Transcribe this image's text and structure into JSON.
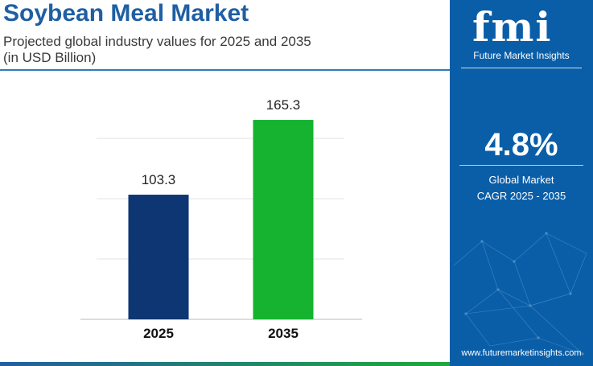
{
  "header": {
    "title": "Soybean Meal Market",
    "subtitle_line1": "Projected global industry values for 2025 and 2035",
    "subtitle_line2": "(in USD Billion)"
  },
  "sidebar": {
    "logo_text": "fmi",
    "logo_subtitle": "Future Market Insights",
    "cagr_value": "4.8%",
    "cagr_label_line1": "Global Market",
    "cagr_label_line2": "CAGR 2025 - 2035",
    "website": "www.futuremarketinsights.com"
  },
  "colors": {
    "title": "#1f5fa3",
    "panel": "#0a5ea8",
    "bar_2025": "#0d3672",
    "bar_2035": "#15b32f"
  },
  "chart_data": {
    "type": "bar",
    "title": "",
    "categories": [
      "2025",
      "2035"
    ],
    "values": [
      103.3,
      165.3
    ],
    "data_labels": [
      "103.3",
      "165.3"
    ],
    "bar_colors": [
      "#0d3672",
      "#15b32f"
    ],
    "xlabel": "",
    "ylabel": "",
    "ylim": [
      0,
      200
    ],
    "grid": true
  }
}
